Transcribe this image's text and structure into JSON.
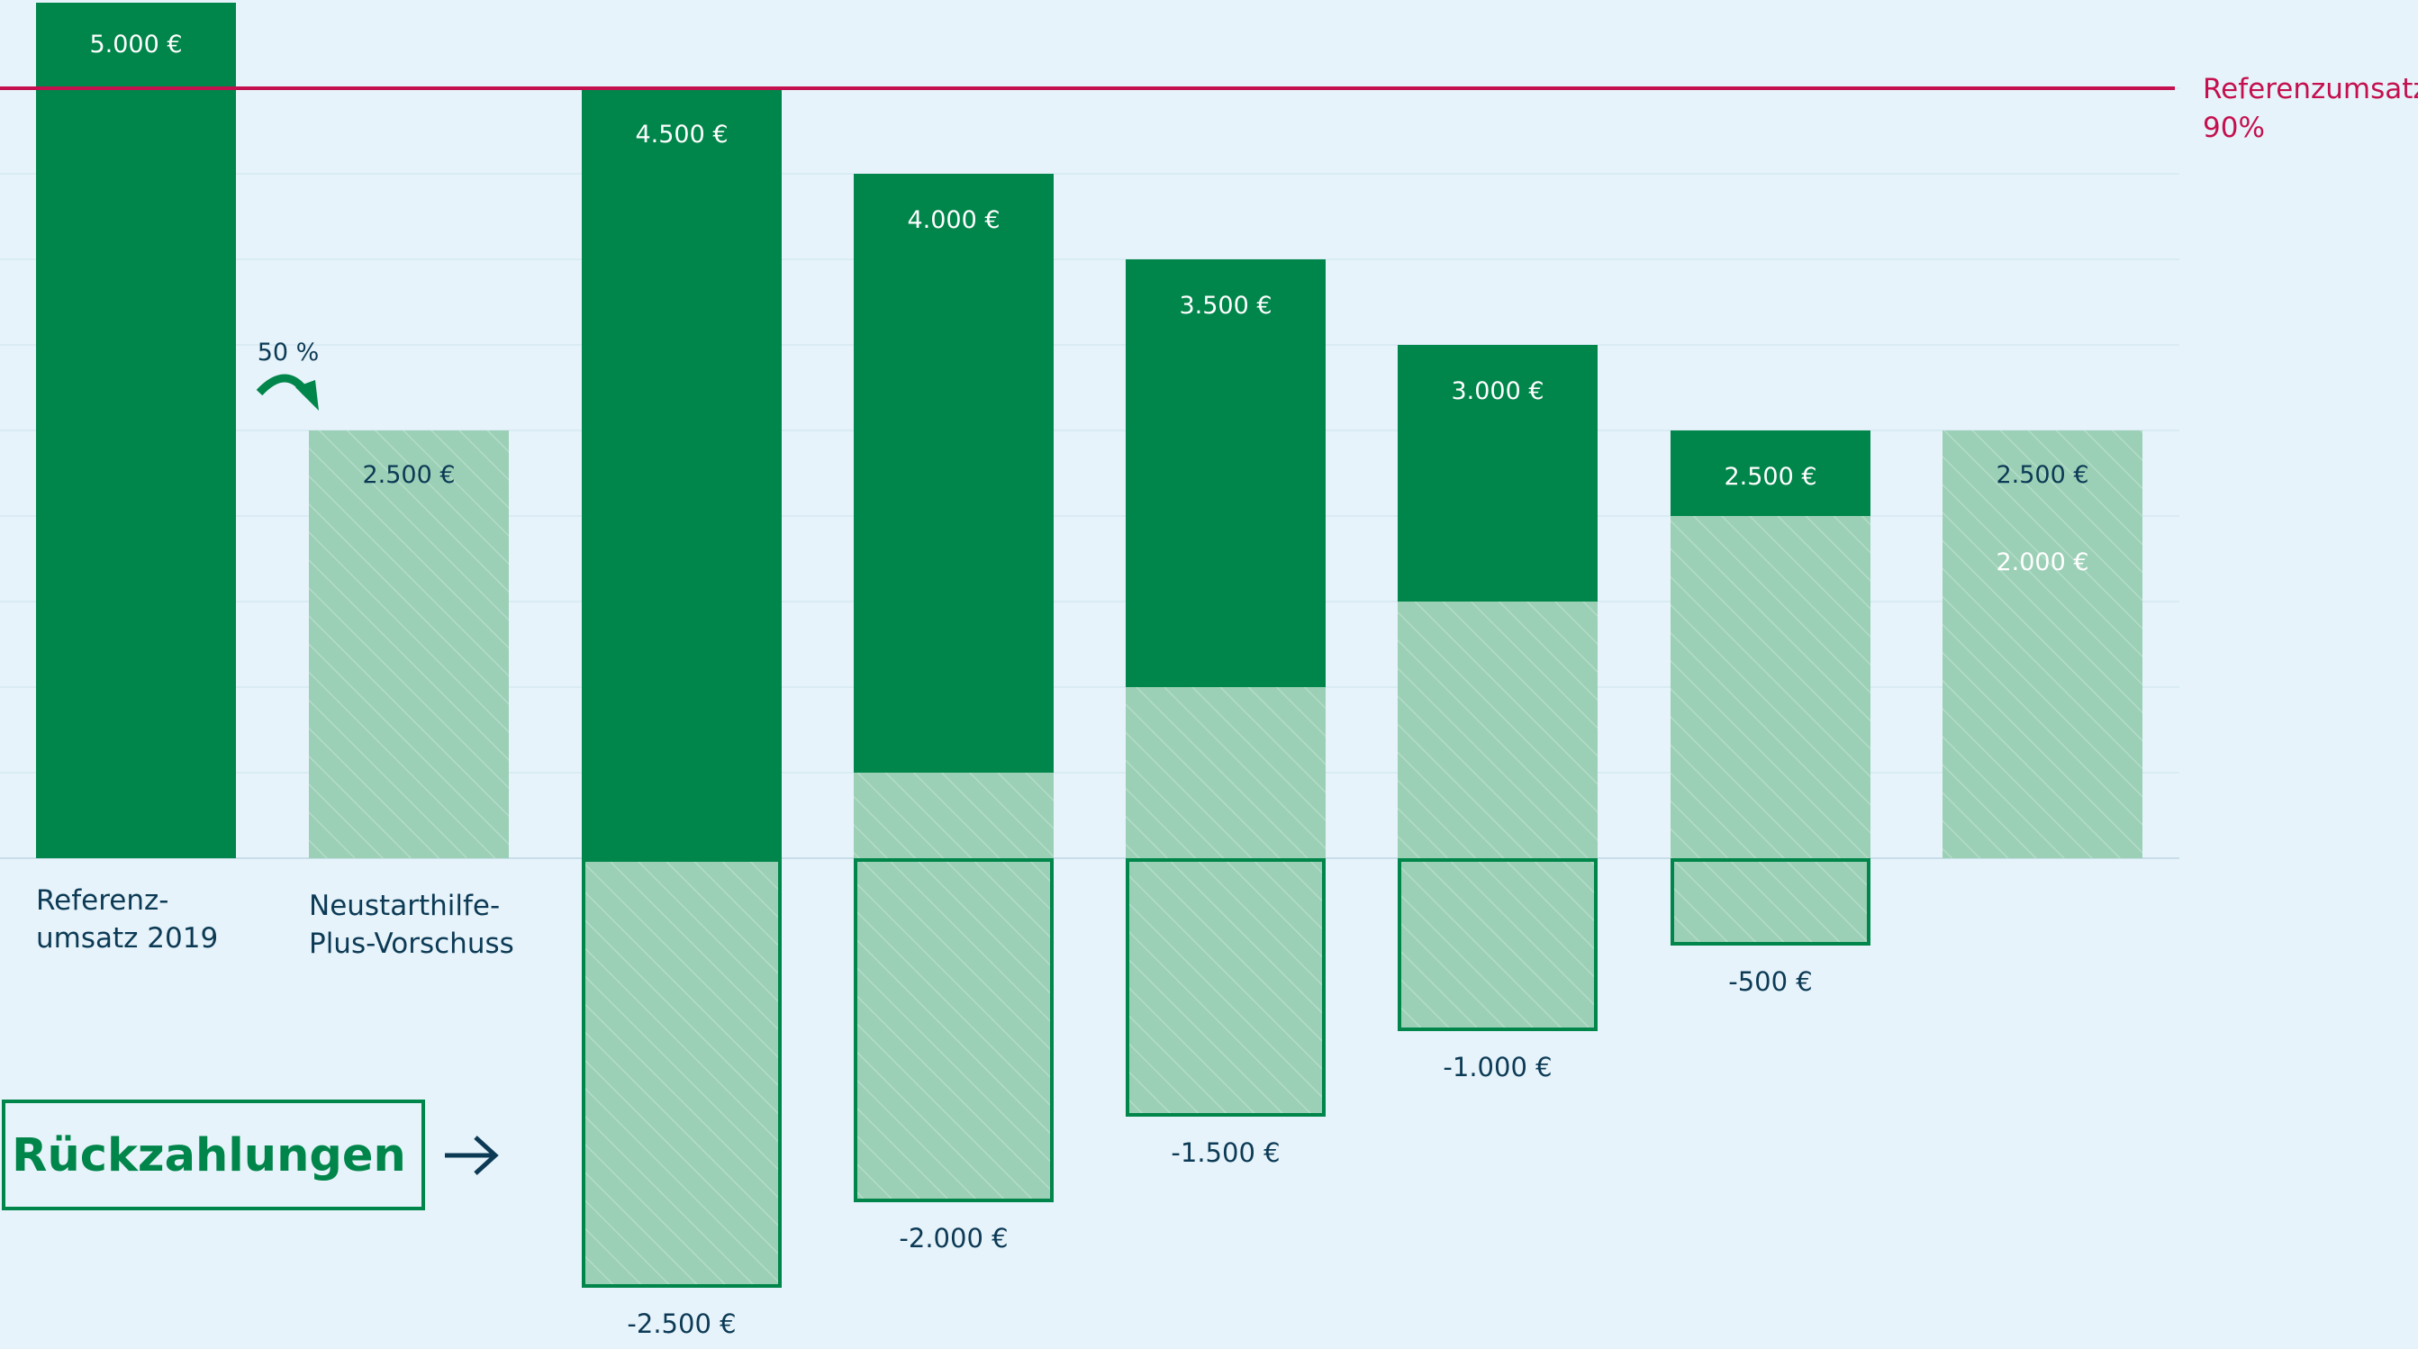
{
  "chart_data": {
    "type": "bar",
    "currency_unit": "€",
    "reference_line": {
      "label": [
        "Referenzumsatz",
        "90%"
      ],
      "value": 4500,
      "color": "#c4104e"
    },
    "reference_revenue": {
      "value": 5000,
      "label": "5.000 €",
      "category": [
        "Referenz-",
        "umsatz 2019"
      ]
    },
    "advance": {
      "value": 2500,
      "label": "2.500 €",
      "category": [
        "Neustarthilfe-",
        "Plus-Vorschuss"
      ],
      "percent_label": "50 %"
    },
    "months": [
      {
        "revenue": 4500,
        "revenue_label": "4.500 €",
        "repayment": -2500,
        "repayment_label": "-2.500 €"
      },
      {
        "revenue": 4000,
        "revenue_label": "4.000 €",
        "repayment": -2000,
        "repayment_label": "-2.000 €"
      },
      {
        "revenue": 3500,
        "revenue_label": "3.500 €",
        "repayment": -1500,
        "repayment_label": "-1.500 €"
      },
      {
        "revenue": 3000,
        "revenue_label": "3.000 €",
        "repayment": -1000,
        "repayment_label": "-1.000 €"
      },
      {
        "revenue": 2500,
        "revenue_label": "2.500 €",
        "repayment": -500,
        "repayment_label": "-500 €"
      },
      {
        "revenue": 2000,
        "revenue_label": "2.000 €",
        "repayment": 0,
        "repayment_label": "",
        "advance_label": "2.500 €"
      }
    ],
    "legend": {
      "label": "Rückzahlungen"
    },
    "colors": {
      "dark_green": "#00854a",
      "light_green": "#9bd0b6",
      "navy_text": "#0c3a55",
      "background": "#e6f3fa"
    }
  }
}
